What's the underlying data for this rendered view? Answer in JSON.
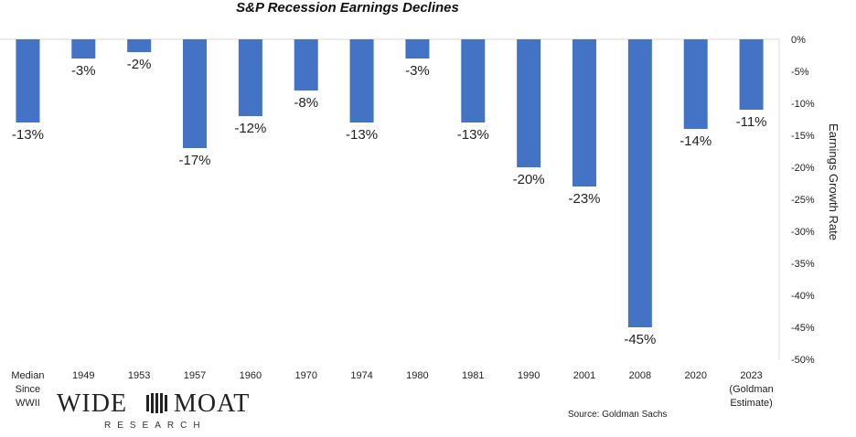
{
  "title": "S&P Recession Earnings Declines",
  "source": "Source: Goldman Sachs",
  "logo": {
    "wide": "WIDE",
    "moat": "MOAT",
    "sub": "RESEARCH"
  },
  "colors": {
    "bar": "#4472C4",
    "axis": "#d9d9d9",
    "text": "#222222"
  },
  "chart_data": {
    "type": "bar",
    "title": "S&P Recession Earnings Declines",
    "ylabel": "Earnings Growth Rate",
    "xlabel": "",
    "ylim": [
      -50,
      0
    ],
    "y_axis_position": "right",
    "y_ticks": [
      "0%",
      "-5%",
      "-10%",
      "-15%",
      "-20%",
      "-25%",
      "-30%",
      "-35%",
      "-40%",
      "-45%",
      "-50%"
    ],
    "y_tick_values": [
      0,
      -5,
      -10,
      -15,
      -20,
      -25,
      -30,
      -35,
      -40,
      -45,
      -50
    ],
    "grid": false,
    "categories": [
      [
        "Median",
        "Since",
        "WWII"
      ],
      [
        "1949"
      ],
      [
        "1953"
      ],
      [
        "1957"
      ],
      [
        "1960"
      ],
      [
        "1970"
      ],
      [
        "1974"
      ],
      [
        "1980"
      ],
      [
        "1981"
      ],
      [
        "1990"
      ],
      [
        "2001"
      ],
      [
        "2008"
      ],
      [
        "2020"
      ],
      [
        "2023",
        "(Goldman",
        "Estimate)"
      ]
    ],
    "values": [
      -13,
      -3,
      -2,
      -17,
      -12,
      -8,
      -13,
      -3,
      -13,
      -20,
      -23,
      -45,
      -14,
      -11
    ],
    "data_labels": [
      "-13%",
      "-3%",
      "-2%",
      "-17%",
      "-12%",
      "-8%",
      "-13%",
      "-3%",
      "-13%",
      "-20%",
      "-23%",
      "-45%",
      "-14%",
      "-11%"
    ]
  }
}
